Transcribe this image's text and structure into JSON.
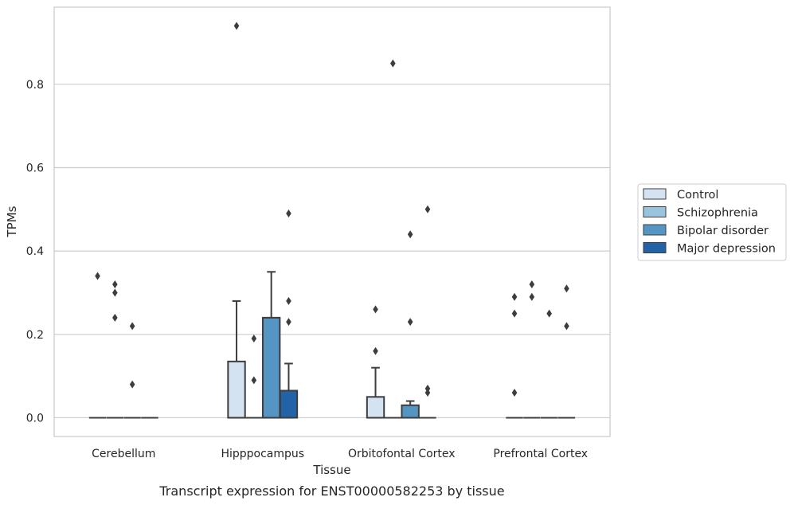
{
  "chart_data": {
    "type": "box",
    "title": "",
    "caption": "Transcript expression for ENST00000582253 by tissue",
    "xlabel": "Tissue",
    "ylabel": "TPMs",
    "ylim": [
      -0.045,
      0.985
    ],
    "yticks": [
      "0.0",
      "0.2",
      "0.4",
      "0.6",
      "0.8"
    ],
    "grid": true,
    "legend_position": "right",
    "categories": [
      "Cerebellum",
      "Hipppocampus",
      "Orbitofontal Cortex",
      "Prefrontal Cortex"
    ],
    "series": [
      {
        "name": "Control",
        "color": "#d3e3f2",
        "boxes": [
          {
            "q1": 0,
            "median": 0,
            "q3": 0,
            "whislo": 0,
            "whishi": 0,
            "fliers": [
              0.34
            ]
          },
          {
            "q1": 0,
            "median": 0,
            "q3": 0.135,
            "whislo": 0,
            "whishi": 0.28,
            "fliers": [
              0.94
            ]
          },
          {
            "q1": 0,
            "median": 0,
            "q3": 0.05,
            "whislo": 0,
            "whishi": 0.12,
            "fliers": [
              0.26,
              0.16
            ]
          },
          {
            "q1": 0,
            "median": 0,
            "q3": 0,
            "whislo": 0,
            "whishi": 0,
            "fliers": [
              0.29,
              0.25,
              0.06
            ]
          }
        ]
      },
      {
        "name": "Schizophrenia",
        "color": "#9ac3de",
        "boxes": [
          {
            "q1": 0,
            "median": 0,
            "q3": 0,
            "whislo": 0,
            "whishi": 0,
            "fliers": [
              0.32,
              0.3,
              0.24
            ]
          },
          {
            "q1": 0,
            "median": 0,
            "q3": 0,
            "whislo": 0,
            "whishi": 0,
            "fliers": [
              0.19,
              0.09
            ]
          },
          {
            "q1": 0,
            "median": 0,
            "q3": 0,
            "whislo": 0,
            "whishi": 0,
            "fliers": [
              0.85
            ]
          },
          {
            "q1": 0,
            "median": 0,
            "q3": 0,
            "whislo": 0,
            "whishi": 0,
            "fliers": [
              0.32,
              0.29
            ]
          }
        ]
      },
      {
        "name": "Bipolar disorder",
        "color": "#5495c3",
        "boxes": [
          {
            "q1": 0,
            "median": 0,
            "q3": 0,
            "whislo": 0,
            "whishi": 0,
            "fliers": [
              0.22,
              0.08
            ]
          },
          {
            "q1": 0,
            "median": 0,
            "q3": 0.24,
            "whislo": 0,
            "whishi": 0.35,
            "fliers": []
          },
          {
            "q1": 0,
            "median": 0,
            "q3": 0.03,
            "whislo": 0,
            "whishi": 0.04,
            "fliers": [
              0.44,
              0.23
            ]
          },
          {
            "q1": 0,
            "median": 0,
            "q3": 0,
            "whislo": 0,
            "whishi": 0,
            "fliers": [
              0.25
            ]
          }
        ]
      },
      {
        "name": "Major depression",
        "color": "#2163a6",
        "boxes": [
          {
            "q1": 0,
            "median": 0,
            "q3": 0,
            "whislo": 0,
            "whishi": 0,
            "fliers": []
          },
          {
            "q1": 0,
            "median": 0,
            "q3": 0.065,
            "whislo": 0,
            "whishi": 0.13,
            "fliers": [
              0.49,
              0.28,
              0.23
            ]
          },
          {
            "q1": 0,
            "median": 0,
            "q3": 0,
            "whislo": 0,
            "whishi": 0,
            "fliers": [
              0.5,
              0.07,
              0.06
            ]
          },
          {
            "q1": 0,
            "median": 0,
            "q3": 0,
            "whislo": 0,
            "whishi": 0,
            "fliers": [
              0.31,
              0.22
            ]
          }
        ]
      }
    ]
  }
}
